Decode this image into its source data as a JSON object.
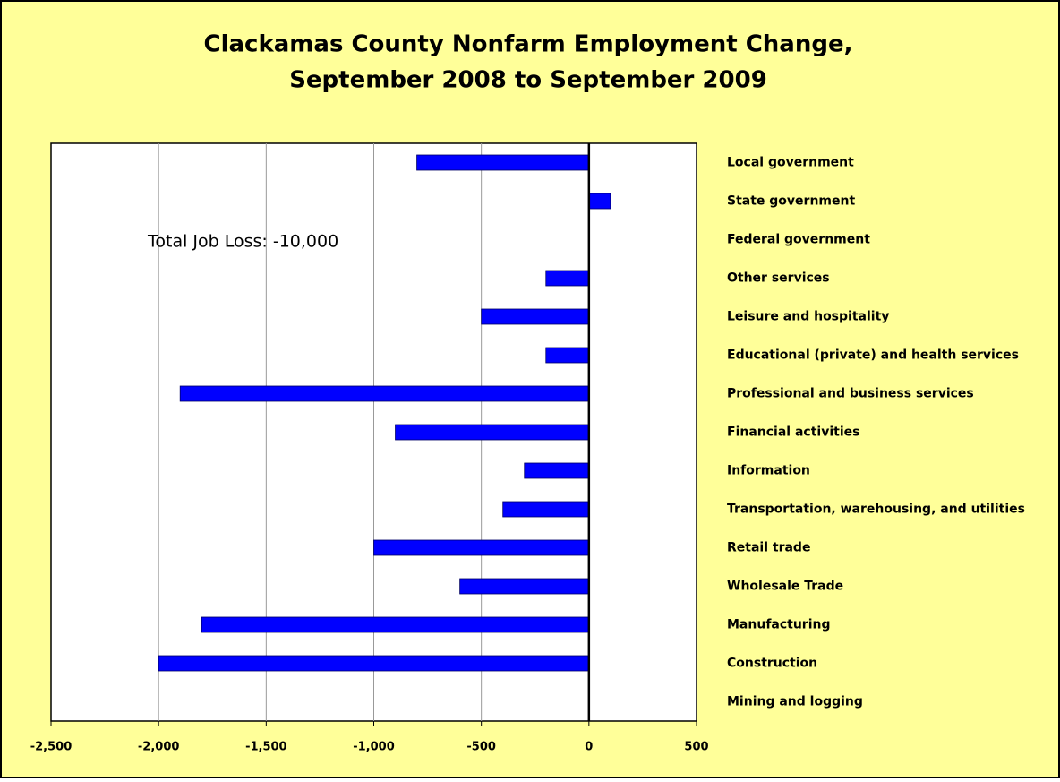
{
  "chart_data": {
    "type": "bar",
    "orientation": "horizontal",
    "title": "Clackamas County Nonfarm Employment Change,",
    "subtitle": "September 2008 to September 2009",
    "annotation": "Total Job Loss:  -10,000",
    "categories": [
      "Local government",
      "State government",
      "Federal government",
      "Other services",
      "Leisure and hospitality",
      "Educational (private)  and health services",
      "Professional and business services",
      "Financial activities",
      "Information",
      "Transportation, warehousing, and utilities",
      "Retail trade",
      "Wholesale Trade",
      "Manufacturing",
      "Construction",
      "Mining and logging"
    ],
    "values": [
      -800,
      100,
      0,
      -200,
      -500,
      -200,
      -1900,
      -900,
      -300,
      -400,
      -1000,
      -600,
      -1800,
      -2000,
      0
    ],
    "color": "#0000ff",
    "xlim": [
      -2500,
      500
    ],
    "xticks": [
      {
        "value": -2500,
        "label": "-2,500"
      },
      {
        "value": -2000,
        "label": "-2,000"
      },
      {
        "value": -1500,
        "label": "-1,500"
      },
      {
        "value": -1000,
        "label": "-1,000"
      },
      {
        "value": -500,
        "label": "-500"
      },
      0,
      500
    ],
    "grid": true
  }
}
